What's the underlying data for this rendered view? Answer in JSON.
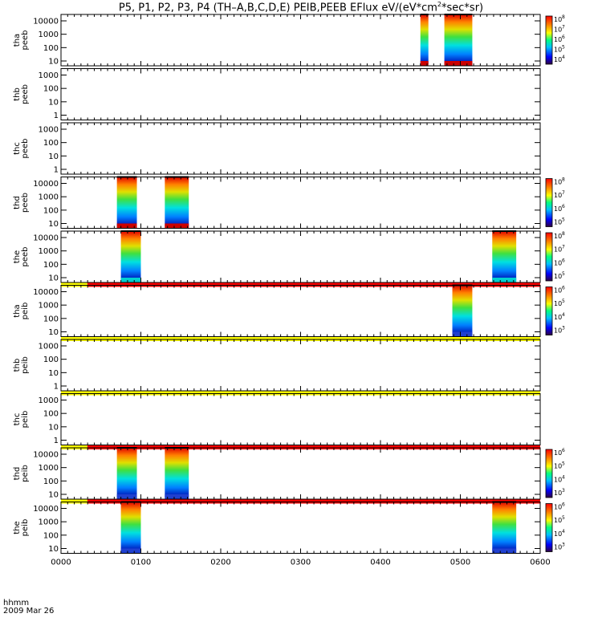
{
  "title": "P5, P1, P2, P3, P4 (TH–A,B,C,D,E) PEIB,PEEB EFlux eV/(eV*cm",
  "title_sup": "2",
  "title_tail": "*sec*sr)",
  "footer": {
    "time_label": "hhmm",
    "date_label": "2009 Mar 26"
  },
  "colors": {
    "flag_yellow": "#ffff00",
    "flag_red": "#ff0000",
    "frame": "#000000"
  },
  "chart_data": {
    "type": "heatmap",
    "x_ticks": [
      "0000",
      "0100",
      "0200",
      "0300",
      "0400",
      "0500",
      "0600"
    ],
    "x_range_hours": [
      0,
      6
    ],
    "y_scale": "log",
    "panels": [
      {
        "name": "thapeeb",
        "label": [
          "tha",
          "peeb"
        ],
        "yticks": [
          "10000",
          "1000",
          "100",
          "10"
        ],
        "colorbar": [
          "10",
          "10",
          "10",
          "10",
          "10"
        ],
        "colorbar_exp": [
          "8",
          "7",
          "6",
          "5",
          "4"
        ],
        "blocks": [
          {
            "x": [
              4.5,
              4.6
            ],
            "bottom": "red"
          },
          {
            "x": [
              4.8,
              5.15
            ],
            "bottom": "red"
          }
        ],
        "flag": null
      },
      {
        "name": "thbpeeb",
        "label": [
          "thb",
          "peeb"
        ],
        "yticks": [
          "1000",
          "100",
          "10",
          "1"
        ],
        "colorbar": [],
        "colorbar_exp": [],
        "blocks": [],
        "flag": null
      },
      {
        "name": "thcpeeb",
        "label": [
          "thc",
          "peeb"
        ],
        "yticks": [
          "1000",
          "100",
          "10",
          "1"
        ],
        "colorbar": [],
        "colorbar_exp": [],
        "blocks": [],
        "flag": null
      },
      {
        "name": "thdpeeb",
        "label": [
          "thd",
          "peeb"
        ],
        "yticks": [
          "10000",
          "1000",
          "100",
          "10"
        ],
        "colorbar": [
          "10",
          "10",
          "10",
          "10"
        ],
        "colorbar_exp": [
          "8",
          "7",
          "6",
          "5"
        ],
        "blocks": [
          {
            "x": [
              0.7,
              0.95
            ],
            "bottom": "red"
          },
          {
            "x": [
              1.3,
              1.6
            ],
            "bottom": "red"
          }
        ],
        "flag": null
      },
      {
        "name": "thepeeb",
        "label": [
          "the",
          "peeb"
        ],
        "yticks": [
          "10000",
          "1000",
          "100",
          "10"
        ],
        "colorbar": [
          "10",
          "10",
          "10",
          "10"
        ],
        "colorbar_exp": [
          "8",
          "7",
          "6",
          "5"
        ],
        "blocks": [
          {
            "x": [
              0.75,
              1.0
            ],
            "bottom": "cyan"
          },
          {
            "x": [
              5.4,
              5.7
            ],
            "bottom": "cyan"
          }
        ],
        "flag": "yellow-red"
      },
      {
        "name": "thapeib",
        "label": [
          "tha",
          "peib"
        ],
        "yticks": [
          "10000",
          "1000",
          "100",
          "10"
        ],
        "colorbar": [
          "10",
          "10",
          "10",
          "10"
        ],
        "colorbar_exp": [
          "6",
          "5",
          "4",
          "3"
        ],
        "blocks": [
          {
            "x": [
              4.9,
              5.15
            ],
            "bottom": "blue"
          }
        ],
        "flag": "yellow"
      },
      {
        "name": "thbpeib",
        "label": [
          "thb",
          "peib"
        ],
        "yticks": [
          "1000",
          "100",
          "10",
          "1"
        ],
        "colorbar": [],
        "colorbar_exp": [],
        "blocks": [],
        "flag": "yellow"
      },
      {
        "name": "thcpeib",
        "label": [
          "thc",
          "peib"
        ],
        "yticks": [
          "1000",
          "100",
          "10",
          "1"
        ],
        "colorbar": [],
        "colorbar_exp": [],
        "blocks": [],
        "flag": "yellow-red"
      },
      {
        "name": "thdpeib",
        "label": [
          "thd",
          "peib"
        ],
        "yticks": [
          "10000",
          "1000",
          "100",
          "10"
        ],
        "colorbar": [
          "10",
          "10",
          "10",
          "10"
        ],
        "colorbar_exp": [
          "6",
          "5",
          "4",
          "3"
        ],
        "blocks": [
          {
            "x": [
              0.7,
              0.95
            ],
            "bottom": "blue"
          },
          {
            "x": [
              1.3,
              1.6
            ],
            "bottom": "blue"
          }
        ],
        "flag": "yellow-red"
      },
      {
        "name": "thepeib",
        "label": [
          "the",
          "peib"
        ],
        "yticks": [
          "10000",
          "1000",
          "100",
          "10"
        ],
        "colorbar": [
          "10",
          "10",
          "10",
          "10"
        ],
        "colorbar_exp": [
          "6",
          "5",
          "4",
          "3"
        ],
        "blocks": [
          {
            "x": [
              0.75,
              1.0
            ],
            "bottom": "blue"
          },
          {
            "x": [
              5.4,
              5.7
            ],
            "bottom": "blue"
          }
        ],
        "flag": null
      }
    ]
  }
}
